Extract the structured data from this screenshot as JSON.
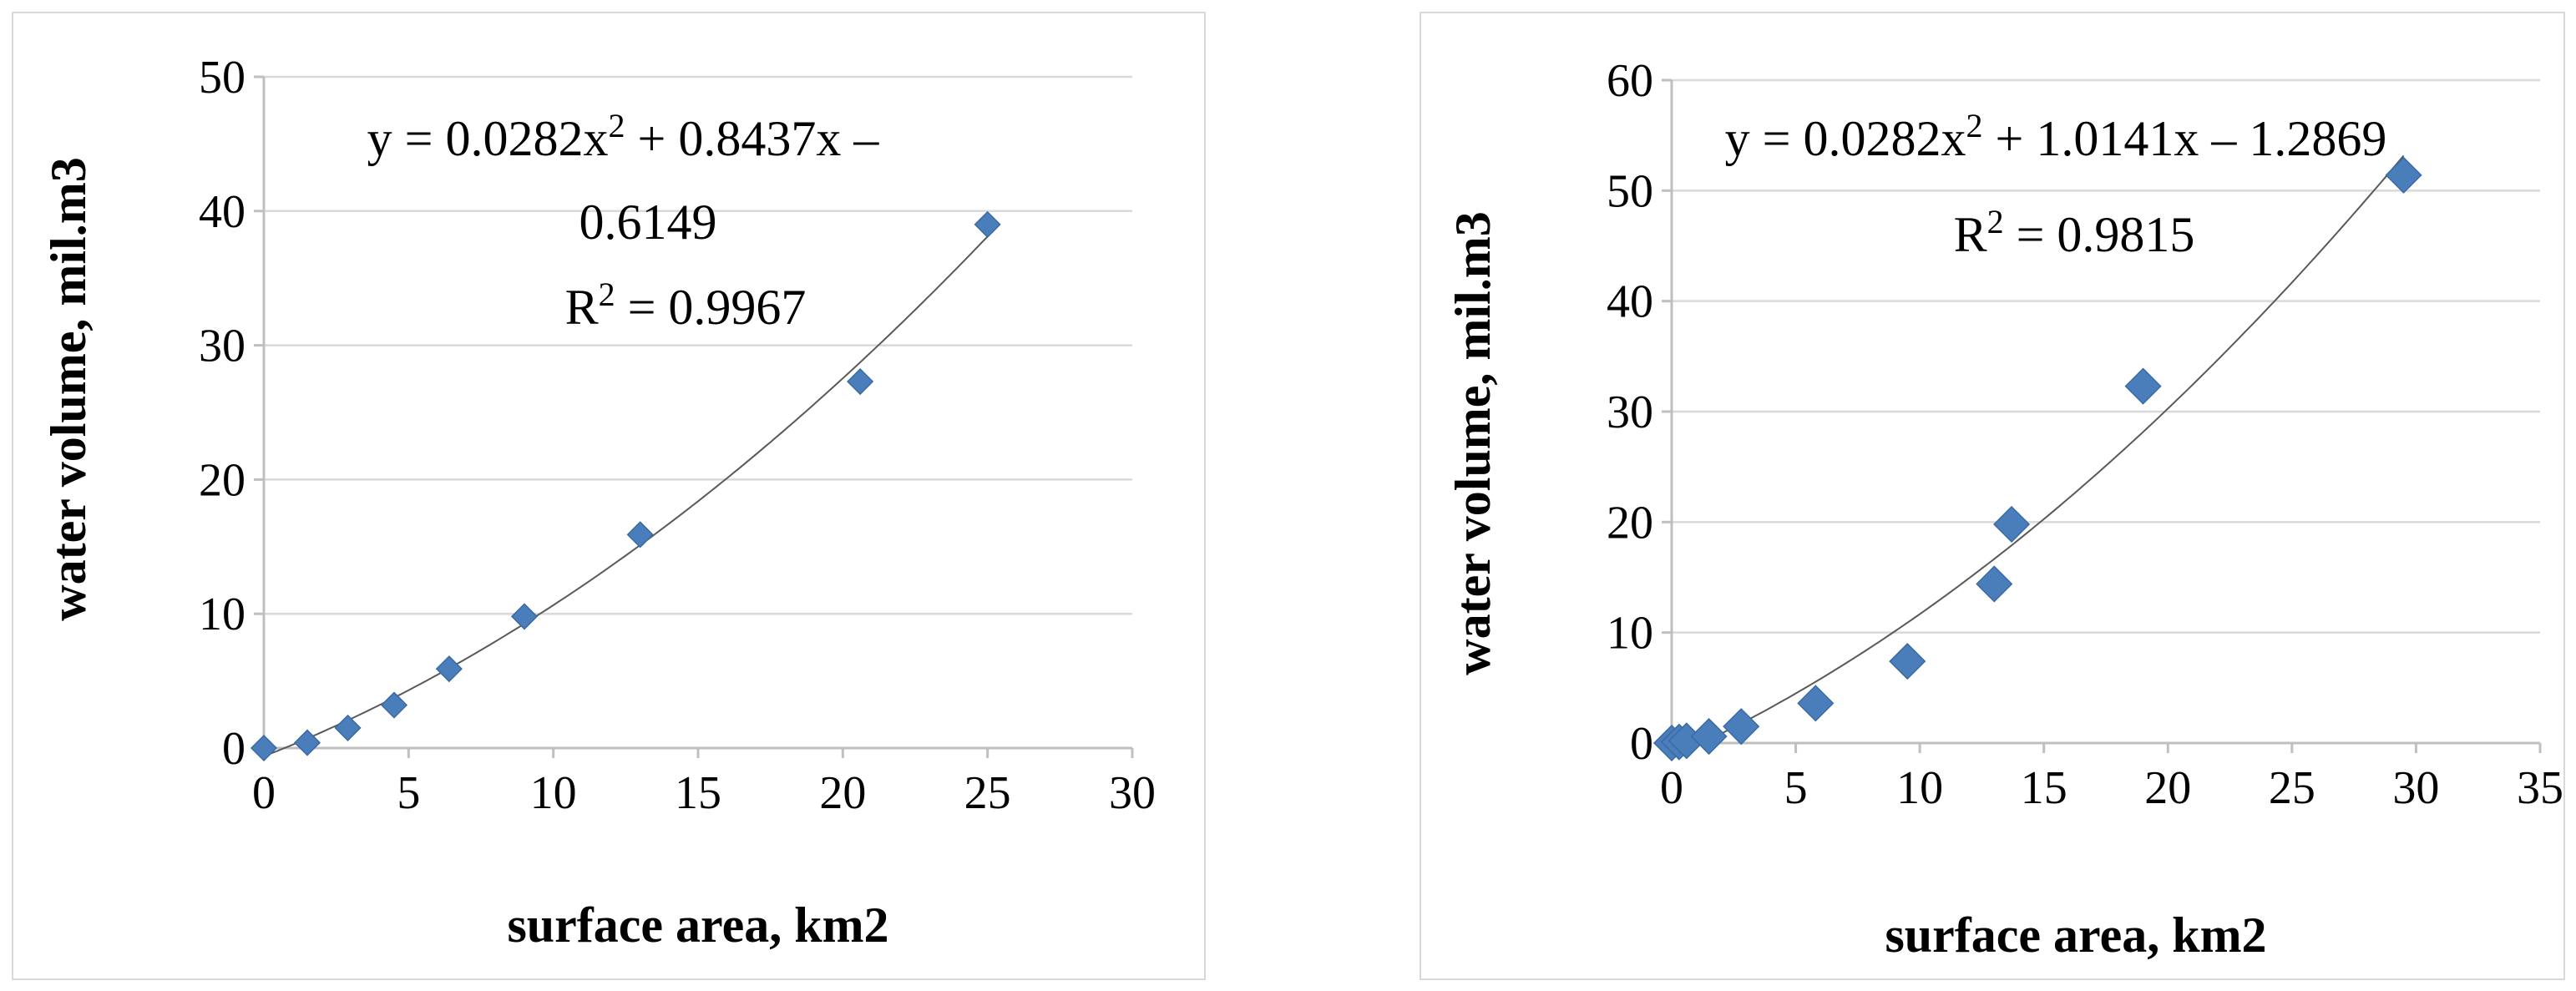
{
  "chart_data": [
    {
      "type": "scatter",
      "xlabel": "surface area, km2",
      "ylabel": "water volume, mil.m3",
      "xlim": [
        0,
        30
      ],
      "ylim": [
        0,
        50
      ],
      "x_ticks": [
        "0",
        "5",
        "10",
        "15",
        "20",
        "25",
        "30"
      ],
      "y_ticks": [
        "0",
        "10",
        "20",
        "30",
        "40",
        "50"
      ],
      "grid": "horizontal",
      "marker_color": "#4a7ebb",
      "marker": "small-diamond",
      "series": [
        {
          "points": [
            [
              0,
              0
            ],
            [
              1.5,
              0.4
            ],
            [
              2.9,
              1.5
            ],
            [
              4.5,
              3.2
            ],
            [
              6.4,
              5.9
            ],
            [
              9.0,
              9.8
            ],
            [
              13.0,
              15.9
            ],
            [
              20.6,
              27.3
            ],
            [
              25.0,
              39.0
            ]
          ]
        }
      ],
      "trendline": {
        "type": "polynomial",
        "coefficients": [
          0.0282,
          0.8437,
          -0.6149
        ],
        "r2": 0.9967
      },
      "annotation": {
        "line1_prefix": "y = 0.0282x",
        "line1_sup": "2",
        "line1_suffix": " + 0.8437x –",
        "line2": "0.6149",
        "r2_prefix": "R",
        "r2_sup": "2",
        "r2_suffix": " = 0.9967"
      }
    },
    {
      "type": "scatter",
      "xlabel": "surface area, km2",
      "ylabel": "water volume, mil.m3",
      "xlim": [
        0,
        35
      ],
      "ylim": [
        0,
        60
      ],
      "x_ticks": [
        "0",
        "5",
        "10",
        "15",
        "20",
        "25",
        "30",
        "35"
      ],
      "y_ticks": [
        "0",
        "10",
        "20",
        "30",
        "40",
        "50",
        "60"
      ],
      "grid": "horizontal",
      "marker_color": "#4a7ebb",
      "marker": "large-diamond",
      "series": [
        {
          "points": [
            [
              0,
              0
            ],
            [
              0.3,
              0.1
            ],
            [
              0.6,
              0.2
            ],
            [
              1.5,
              0.6
            ],
            [
              2.8,
              1.5
            ],
            [
              5.8,
              3.6
            ],
            [
              9.5,
              7.4
            ],
            [
              13.0,
              14.4
            ],
            [
              13.7,
              19.8
            ],
            [
              19.0,
              32.3
            ],
            [
              29.5,
              51.4
            ]
          ]
        }
      ],
      "trendline": {
        "type": "polynomial",
        "coefficients": [
          0.0282,
          1.0141,
          -1.2869
        ],
        "r2": 0.9815
      },
      "annotation": {
        "line1_prefix": "y = 0.0282x",
        "line1_sup": "2",
        "line1_suffix": " + 1.0141x – 1.2869",
        "r2_prefix": "R",
        "r2_sup": "2",
        "r2_suffix": " = 0.9815"
      }
    }
  ]
}
